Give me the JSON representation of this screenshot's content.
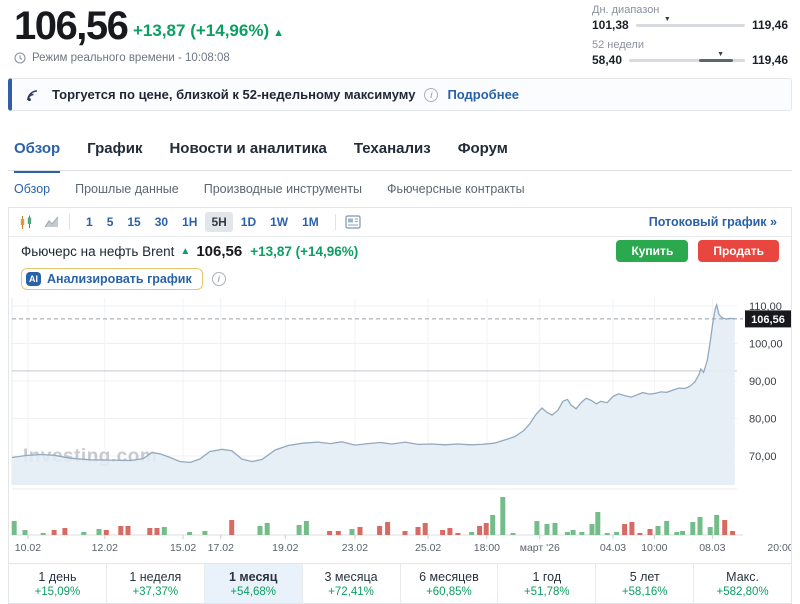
{
  "header": {
    "price": "106,56",
    "change": "+13,87 (+14,96%)",
    "change_arrow": "▲",
    "realtime": "Режим реального времени - 10:08:08",
    "ranges": [
      {
        "label": "Дн. диапазон",
        "low": "101,38",
        "high": "119,46",
        "marker_pos": 0.29,
        "segment": null
      },
      {
        "label": "52 недели",
        "low": "58,40",
        "high": "119,46",
        "marker_pos": 0.79,
        "segment": [
          0.6,
          0.9
        ]
      }
    ]
  },
  "banner": {
    "text": "Торгуется по цене, близкой к 52-недельному максимуму",
    "info_icon": "i",
    "link": "Подробнее"
  },
  "tabs": {
    "main": [
      {
        "label": "Обзор",
        "active": true
      },
      {
        "label": "График",
        "active": false
      },
      {
        "label": "Новости и аналитика",
        "active": false
      },
      {
        "label": "Теханализ",
        "active": false
      },
      {
        "label": "Форум",
        "active": false
      }
    ],
    "sub": [
      {
        "label": "Обзор",
        "active": true
      },
      {
        "label": "Прошлые данные",
        "active": false
      },
      {
        "label": "Производные инструменты",
        "active": false
      },
      {
        "label": "Фьючерсные контракты",
        "active": false
      }
    ]
  },
  "toolbar": {
    "timeframes": [
      {
        "label": "1",
        "active": false
      },
      {
        "label": "5",
        "active": false
      },
      {
        "label": "15",
        "active": false
      },
      {
        "label": "30",
        "active": false
      },
      {
        "label": "1H",
        "active": false
      },
      {
        "label": "5H",
        "active": true
      },
      {
        "label": "1D",
        "active": false
      },
      {
        "label": "1W",
        "active": false
      },
      {
        "label": "1M",
        "active": false
      }
    ],
    "stream_link": "Потоковый график »"
  },
  "instrument": {
    "name": "Фьючерс на нефть Brent",
    "arrow": "▲",
    "price": "106,56",
    "change": "+13,87 (+14,96%)",
    "buy_label": "Купить",
    "sell_label": "Продать",
    "ai_badge": "AI",
    "ai_label": "Анализировать график"
  },
  "icons": {
    "realtime": "clock-icon",
    "banner": "signal-icon",
    "info": "info-circle-icon",
    "chart_type_1": "candlestick-icon",
    "chart_type_2": "area-chart-icon",
    "panel": "news-panel-icon"
  },
  "colors": {
    "accent_blue": "#2a62a8",
    "positive_green": "#0c9e62",
    "buy_green": "#2aa94e",
    "sell_red": "#e8463f",
    "line": "#93a9bf",
    "fill": "#e3ecf4",
    "vol_up": "#74bd8b",
    "vol_down": "#d96a63",
    "price_tag_bg": "#17191d"
  },
  "chart_data": {
    "type": "area",
    "instrument": "Фьючерс на нефть Brent",
    "timeframe": "5H",
    "watermark": "Investing.com",
    "ylim": [
      65,
      113
    ],
    "grid": true,
    "yticks": [
      {
        "v": 110,
        "label": "110,00"
      },
      {
        "v": 100,
        "label": "100,00"
      },
      {
        "v": 90,
        "label": "90,00"
      },
      {
        "v": 80,
        "label": "80,00"
      },
      {
        "v": 70,
        "label": "70,00"
      }
    ],
    "current_price": {
      "v": 106.56,
      "label": "106,56"
    },
    "prev_close": 92.69,
    "xticks": [
      {
        "label": "10.02",
        "pos": 0.022
      },
      {
        "label": "12.02",
        "pos": 0.128
      },
      {
        "label": "15.02",
        "pos": 0.236
      },
      {
        "label": "17.02",
        "pos": 0.288
      },
      {
        "label": "19.02",
        "pos": 0.377
      },
      {
        "label": "23.02",
        "pos": 0.473
      },
      {
        "label": "25.02",
        "pos": 0.574
      },
      {
        "label": "18:00",
        "pos": 0.655
      },
      {
        "label": "март '26",
        "pos": 0.728
      },
      {
        "label": "04.03",
        "pos": 0.829
      },
      {
        "label": "10:00",
        "pos": 0.886
      },
      {
        "label": "08.03",
        "pos": 0.966
      },
      {
        "label": "20:00",
        "pos": 1.06
      }
    ],
    "price_series": [
      [
        0.0,
        69.6
      ],
      [
        0.018,
        70.1
      ],
      [
        0.039,
        70.4
      ],
      [
        0.059,
        70.2
      ],
      [
        0.08,
        69.4
      ],
      [
        0.108,
        69.0
      ],
      [
        0.135,
        68.9
      ],
      [
        0.163,
        68.8
      ],
      [
        0.181,
        69.3
      ],
      [
        0.193,
        70.9
      ],
      [
        0.204,
        70.6
      ],
      [
        0.218,
        69.6
      ],
      [
        0.232,
        68.5
      ],
      [
        0.246,
        68.3
      ],
      [
        0.259,
        69.2
      ],
      [
        0.273,
        71.2
      ],
      [
        0.29,
        71.8
      ],
      [
        0.303,
        71.4
      ],
      [
        0.317,
        69.2
      ],
      [
        0.331,
        68.5
      ],
      [
        0.345,
        69.1
      ],
      [
        0.363,
        71.6
      ],
      [
        0.381,
        72.8
      ],
      [
        0.401,
        73.4
      ],
      [
        0.422,
        73.7
      ],
      [
        0.439,
        73.3
      ],
      [
        0.455,
        73.8
      ],
      [
        0.473,
        72.9
      ],
      [
        0.491,
        73.3
      ],
      [
        0.508,
        73.6
      ],
      [
        0.524,
        73.2
      ],
      [
        0.542,
        73.7
      ],
      [
        0.56,
        73.1
      ],
      [
        0.579,
        73.2
      ],
      [
        0.597,
        73.0
      ],
      [
        0.615,
        73.2
      ],
      [
        0.632,
        73.0
      ],
      [
        0.648,
        73.1
      ],
      [
        0.665,
        73.4
      ],
      [
        0.68,
        74.3
      ],
      [
        0.694,
        75.2
      ],
      [
        0.706,
        76.8
      ],
      [
        0.714,
        78.5
      ],
      [
        0.723,
        81.2
      ],
      [
        0.731,
        82.8
      ],
      [
        0.738,
        81.6
      ],
      [
        0.745,
        80.9
      ],
      [
        0.753,
        82.2
      ],
      [
        0.76,
        84.6
      ],
      [
        0.766,
        85.1
      ],
      [
        0.771,
        83.6
      ],
      [
        0.778,
        82.6
      ],
      [
        0.785,
        84.2
      ],
      [
        0.792,
        85.4
      ],
      [
        0.799,
        84.8
      ],
      [
        0.806,
        83.9
      ],
      [
        0.812,
        84.6
      ],
      [
        0.821,
        84.2
      ],
      [
        0.829,
        85.9
      ],
      [
        0.837,
        86.6
      ],
      [
        0.845,
        86.1
      ],
      [
        0.854,
        85.7
      ],
      [
        0.862,
        86.3
      ],
      [
        0.87,
        86.9
      ],
      [
        0.879,
        86.5
      ],
      [
        0.887,
        86.7
      ],
      [
        0.895,
        87.1
      ],
      [
        0.903,
        87.0
      ],
      [
        0.912,
        87.6
      ],
      [
        0.92,
        88.1
      ],
      [
        0.928,
        88.0
      ],
      [
        0.935,
        88.6
      ],
      [
        0.942,
        89.8
      ],
      [
        0.948,
        91.9
      ],
      [
        0.95,
        93.2
      ],
      [
        0.954,
        92.3
      ],
      [
        0.959,
        95.5
      ],
      [
        0.963,
        100.5
      ],
      [
        0.967,
        106.0
      ],
      [
        0.97,
        109.3
      ],
      [
        0.972,
        110.3
      ],
      [
        0.975,
        107.8
      ],
      [
        0.979,
        106.9
      ],
      [
        0.985,
        106.5
      ],
      [
        0.99,
        106.7
      ],
      [
        0.997,
        106.6
      ]
    ],
    "volume_bars": [
      [
        0.003,
        14,
        "g"
      ],
      [
        0.018,
        5,
        "g"
      ],
      [
        0.043,
        2,
        "g"
      ],
      [
        0.058,
        5,
        "r"
      ],
      [
        0.073,
        7,
        "r"
      ],
      [
        0.099,
        3,
        "g"
      ],
      [
        0.12,
        6,
        "g"
      ],
      [
        0.13,
        5,
        "r"
      ],
      [
        0.15,
        9,
        "r"
      ],
      [
        0.16,
        9,
        "r"
      ],
      [
        0.19,
        7,
        "r"
      ],
      [
        0.2,
        7,
        "r"
      ],
      [
        0.21,
        8,
        "g"
      ],
      [
        0.245,
        3,
        "g"
      ],
      [
        0.266,
        4,
        "g"
      ],
      [
        0.303,
        15,
        "r"
      ],
      [
        0.342,
        9,
        "g"
      ],
      [
        0.352,
        12,
        "g"
      ],
      [
        0.396,
        10,
        "g"
      ],
      [
        0.406,
        14,
        "g"
      ],
      [
        0.438,
        4,
        "r"
      ],
      [
        0.45,
        4,
        "r"
      ],
      [
        0.469,
        6,
        "g"
      ],
      [
        0.48,
        8,
        "r"
      ],
      [
        0.507,
        9,
        "r"
      ],
      [
        0.518,
        13,
        "r"
      ],
      [
        0.542,
        4,
        "r"
      ],
      [
        0.56,
        8,
        "r"
      ],
      [
        0.57,
        12,
        "r"
      ],
      [
        0.594,
        5,
        "r"
      ],
      [
        0.604,
        7,
        "r"
      ],
      [
        0.615,
        2,
        "r"
      ],
      [
        0.634,
        3,
        "g"
      ],
      [
        0.645,
        9,
        "r"
      ],
      [
        0.654,
        12,
        "r"
      ],
      [
        0.663,
        20,
        "g"
      ],
      [
        0.677,
        38,
        "g"
      ],
      [
        0.691,
        2,
        "g"
      ],
      [
        0.724,
        14,
        "g"
      ],
      [
        0.738,
        11,
        "g"
      ],
      [
        0.749,
        12,
        "g"
      ],
      [
        0.766,
        3,
        "g"
      ],
      [
        0.774,
        5,
        "g"
      ],
      [
        0.786,
        3,
        "g"
      ],
      [
        0.8,
        11,
        "g"
      ],
      [
        0.808,
        23,
        "g"
      ],
      [
        0.821,
        2,
        "g"
      ],
      [
        0.834,
        3,
        "g"
      ],
      [
        0.845,
        11,
        "r"
      ],
      [
        0.855,
        13,
        "r"
      ],
      [
        0.866,
        2,
        "r"
      ],
      [
        0.88,
        6,
        "r"
      ],
      [
        0.891,
        9,
        "g"
      ],
      [
        0.903,
        14,
        "g"
      ],
      [
        0.917,
        3,
        "g"
      ],
      [
        0.925,
        4,
        "g"
      ],
      [
        0.939,
        13,
        "g"
      ],
      [
        0.949,
        18,
        "g"
      ],
      [
        0.963,
        8,
        "g"
      ],
      [
        0.972,
        20,
        "g"
      ],
      [
        0.983,
        15,
        "r"
      ],
      [
        0.994,
        4,
        "r"
      ]
    ]
  },
  "periods": [
    {
      "label": "1 день",
      "value": "+15,09%",
      "active": false
    },
    {
      "label": "1 неделя",
      "value": "+37,37%",
      "active": false
    },
    {
      "label": "1 месяц",
      "value": "+54,68%",
      "active": true
    },
    {
      "label": "3 месяца",
      "value": "+72,41%",
      "active": false
    },
    {
      "label": "6 месяцев",
      "value": "+60,85%",
      "active": false
    },
    {
      "label": "1 год",
      "value": "+51,78%",
      "active": false
    },
    {
      "label": "5 лет",
      "value": "+58,16%",
      "active": false
    },
    {
      "label": "Макс.",
      "value": "+582,80%",
      "active": false
    }
  ]
}
